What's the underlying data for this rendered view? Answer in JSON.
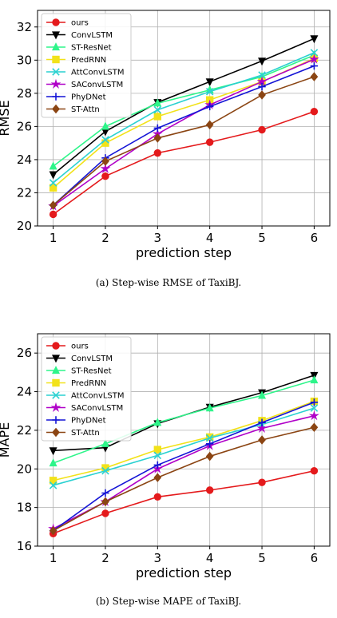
{
  "chart_data": [
    {
      "type": "line",
      "xlabel": "prediction step",
      "ylabel": "RMSE",
      "caption": "(a)  Step-wise RMSE of TaxiBJ.",
      "x": [
        1,
        2,
        3,
        4,
        5,
        6
      ],
      "xticks": [
        "1",
        "2",
        "3",
        "4",
        "5",
        "6"
      ],
      "ylim": [
        20,
        33
      ],
      "yticks": [
        20,
        22,
        24,
        26,
        28,
        30,
        32
      ],
      "grid": true,
      "legend_position": "top-left",
      "series": [
        {
          "name": "ours",
          "color": "#e41a1c",
          "marker": "circle",
          "values": [
            20.7,
            23.0,
            24.4,
            25.05,
            25.8,
            26.9
          ]
        },
        {
          "name": "ConvLSTM",
          "color": "#000000",
          "marker": "triangle-down",
          "values": [
            23.1,
            25.7,
            27.45,
            28.7,
            29.95,
            31.3
          ]
        },
        {
          "name": "ST-ResNet",
          "color": "#2ef58a",
          "marker": "triangle-up",
          "values": [
            23.6,
            26.0,
            27.4,
            28.2,
            29.0,
            30.3
          ]
        },
        {
          "name": "PredRNN",
          "color": "#f2e21a",
          "marker": "square",
          "values": [
            22.3,
            25.0,
            26.6,
            27.6,
            28.7,
            30.1
          ]
        },
        {
          "name": "AttConvLSTM",
          "color": "#2ad1d1",
          "marker": "x",
          "values": [
            22.6,
            25.2,
            27.0,
            28.1,
            29.1,
            30.45
          ]
        },
        {
          "name": "SAConvLSTM",
          "color": "#b000c8",
          "marker": "star",
          "values": [
            21.2,
            23.45,
            25.55,
            27.3,
            28.7,
            30.05
          ]
        },
        {
          "name": "PhyDNet",
          "color": "#1414d6",
          "marker": "plus",
          "values": [
            21.25,
            24.1,
            25.9,
            27.2,
            28.4,
            29.65
          ]
        },
        {
          "name": "ST-Attn",
          "color": "#8b4513",
          "marker": "diamond",
          "values": [
            21.25,
            23.9,
            25.3,
            26.1,
            27.9,
            29.0
          ]
        }
      ]
    },
    {
      "type": "line",
      "xlabel": "prediction step",
      "ylabel": "MAPE",
      "caption": "(b)  Step-wise MAPE of TaxiBJ.",
      "x": [
        1,
        2,
        3,
        4,
        5,
        6
      ],
      "xticks": [
        "1",
        "2",
        "3",
        "4",
        "5",
        "6"
      ],
      "ylim": [
        16,
        27
      ],
      "yticks": [
        16,
        18,
        20,
        22,
        24,
        26
      ],
      "grid": true,
      "legend_position": "top-left",
      "series": [
        {
          "name": "ours",
          "color": "#e41a1c",
          "marker": "circle",
          "values": [
            16.65,
            17.7,
            18.55,
            18.9,
            19.3,
            19.9
          ]
        },
        {
          "name": "ConvLSTM",
          "color": "#000000",
          "marker": "triangle-down",
          "values": [
            20.95,
            21.1,
            22.35,
            23.2,
            23.95,
            24.85
          ]
        },
        {
          "name": "ST-ResNet",
          "color": "#2ef58a",
          "marker": "triangle-up",
          "values": [
            20.3,
            21.3,
            22.4,
            23.15,
            23.8,
            24.6
          ]
        },
        {
          "name": "PredRNN",
          "color": "#f2e21a",
          "marker": "square",
          "values": [
            19.4,
            20.05,
            21.0,
            21.65,
            22.5,
            23.5
          ]
        },
        {
          "name": "AttConvLSTM",
          "color": "#2ad1d1",
          "marker": "x",
          "values": [
            19.15,
            19.9,
            20.7,
            21.6,
            22.3,
            23.15
          ]
        },
        {
          "name": "SAConvLSTM",
          "color": "#b000c8",
          "marker": "star",
          "values": [
            16.9,
            18.3,
            20.0,
            21.2,
            22.1,
            22.75
          ]
        },
        {
          "name": "PhyDNet",
          "color": "#1414d6",
          "marker": "plus",
          "values": [
            16.8,
            18.75,
            20.2,
            21.3,
            22.4,
            23.45
          ]
        },
        {
          "name": "ST-Attn",
          "color": "#8b4513",
          "marker": "diamond",
          "values": [
            16.8,
            18.3,
            19.55,
            20.65,
            21.5,
            22.15
          ]
        }
      ]
    }
  ]
}
